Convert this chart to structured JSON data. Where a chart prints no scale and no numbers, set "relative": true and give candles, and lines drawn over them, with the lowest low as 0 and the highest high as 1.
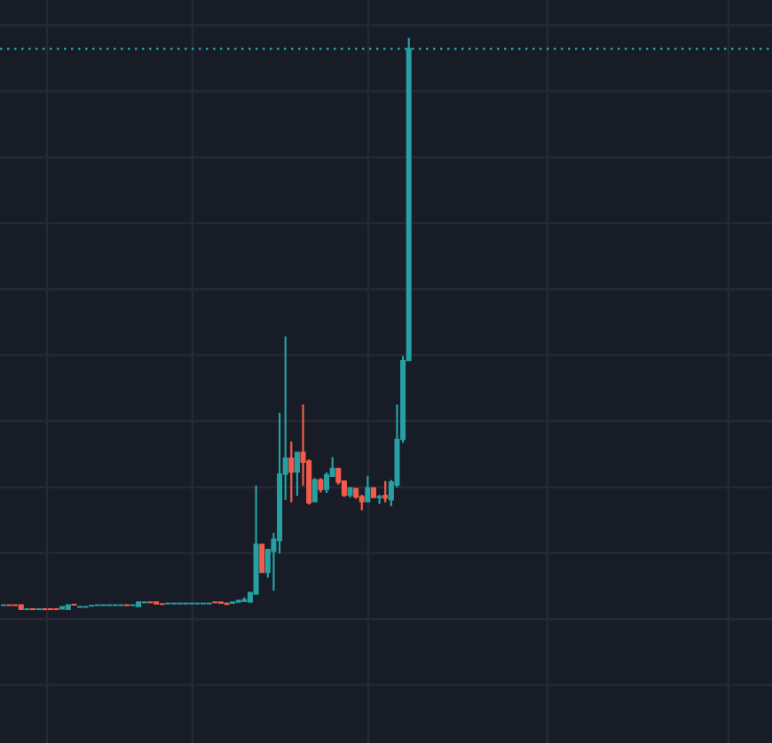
{
  "chart_data": {
    "type": "candlestick",
    "relative": true,
    "grid": true,
    "categories": [
      null,
      null,
      null,
      null,
      null,
      null,
      null,
      null,
      null,
      null,
      null,
      null,
      null,
      null,
      null,
      null,
      null,
      null,
      null,
      null,
      null,
      null,
      null,
      null,
      null,
      null,
      null,
      null,
      null,
      null,
      null,
      null,
      null,
      null,
      null,
      null,
      null,
      null,
      null,
      null,
      null,
      null,
      null,
      null,
      null,
      null,
      null,
      null,
      null,
      null,
      null,
      null,
      null,
      null,
      null,
      null,
      null,
      null,
      null,
      null,
      null,
      null,
      null,
      null,
      null,
      null,
      null,
      null,
      null,
      null
    ],
    "ohlc": [
      [
        0.007,
        0.008,
        0.007,
        0.008
      ],
      [
        0.008,
        0.008,
        0.007,
        0.007
      ],
      [
        0.008,
        0.008,
        0.007,
        0.007
      ],
      [
        0.008,
        0.008,
        0,
        0
      ],
      [
        0,
        0.001,
        0,
        0.001
      ],
      [
        0.001,
        0.001,
        0,
        0
      ],
      [
        0,
        0.001,
        0,
        0.001
      ],
      [
        0.001,
        0.001,
        0,
        0
      ],
      [
        0.001,
        0.001,
        0,
        0
      ],
      [
        0.001,
        0.001,
        0,
        0
      ],
      [
        0.001,
        0.005,
        0.001,
        0.005
      ],
      [
        0,
        0.008,
        0,
        0.008
      ],
      [
        0.009,
        0.009,
        0.008,
        0.008
      ],
      [
        0.004,
        0.005,
        0.004,
        0.005
      ],
      [
        0.004,
        0.005,
        0.004,
        0.005
      ],
      [
        0.006,
        0.007,
        0.006,
        0.007
      ],
      [
        0.007,
        0.008,
        0.007,
        0.008
      ],
      [
        0.007,
        0.008,
        0.007,
        0.008
      ],
      [
        0.007,
        0.008,
        0.007,
        0.008
      ],
      [
        0.007,
        0.008,
        0.007,
        0.008
      ],
      [
        0.007,
        0.008,
        0.007,
        0.008
      ],
      [
        0.008,
        0.008,
        0.007,
        0.007
      ],
      [
        0.007,
        0.008,
        0.007,
        0.008
      ],
      [
        0.005,
        0.013,
        0.005,
        0.013
      ],
      [
        0.012,
        0.013,
        0.012,
        0.013
      ],
      [
        0.013,
        0.013,
        0.012,
        0.012
      ],
      [
        0.013,
        0.013,
        0.01,
        0.01
      ],
      [
        0.01,
        0.01,
        0.009,
        0.009
      ],
      [
        0.01,
        0.011,
        0.01,
        0.011
      ],
      [
        0.01,
        0.011,
        0.01,
        0.011
      ],
      [
        0.01,
        0.011,
        0.01,
        0.011
      ],
      [
        0.01,
        0.011,
        0.01,
        0.011
      ],
      [
        0.01,
        0.011,
        0.01,
        0.011
      ],
      [
        0.01,
        0.011,
        0.01,
        0.011
      ],
      [
        0.01,
        0.011,
        0.01,
        0.011
      ],
      [
        0.01,
        0.011,
        0.01,
        0.011
      ],
      [
        0.013,
        0.013,
        0.012,
        0.012
      ],
      [
        0.013,
        0.013,
        0.011,
        0.011
      ],
      [
        0.011,
        0.011,
        0.009,
        0.009
      ],
      [
        0.011,
        0.013,
        0.011,
        0.013
      ],
      [
        0.013,
        0.016,
        0.013,
        0.016
      ],
      [
        0.014,
        0.02,
        0.014,
        0.017
      ],
      [
        0.013,
        0.03,
        0.013,
        0.03
      ],
      [
        0.027,
        0.216,
        0.027,
        0.114
      ],
      [
        0.114,
        0.114,
        0.065,
        0.065
      ],
      [
        0.065,
        0.105,
        0.057,
        0.105
      ],
      [
        0.102,
        0.133,
        0.034,
        0.123
      ],
      [
        0.121,
        0.343,
        0.099,
        0.237
      ],
      [
        0.237,
        0.477,
        0.193,
        0.265
      ],
      [
        0.265,
        0.293,
        0.189,
        0.241
      ],
      [
        0.241,
        0.275,
        0.2,
        0.275
      ],
      [
        0.275,
        0.358,
        0.218,
        0.258
      ],
      [
        0.26,
        0.262,
        0.185,
        0.187
      ],
      [
        0.189,
        0.229,
        0.189,
        0.227
      ],
      [
        0.227,
        0.229,
        0.206,
        0.21
      ],
      [
        0.21,
        0.239,
        0.205,
        0.236
      ],
      [
        0.233,
        0.266,
        0.233,
        0.247
      ],
      [
        0.247,
        0.247,
        0.22,
        0.223
      ],
      [
        0.225,
        0.225,
        0.198,
        0.2
      ],
      [
        0.2,
        0.213,
        0.197,
        0.213
      ],
      [
        0.212,
        0.212,
        0.195,
        0.197
      ],
      [
        0.198,
        0.2,
        0.175,
        0.189
      ],
      [
        0.189,
        0.233,
        0.189,
        0.213
      ],
      [
        0.213,
        0.213,
        0.196,
        0.196
      ],
      [
        0.196,
        0.2,
        0.186,
        0.198
      ],
      [
        0.2,
        0.224,
        0.189,
        0.195
      ],
      [
        0.192,
        0.226,
        0.182,
        0.223
      ],
      [
        0.218,
        0.358,
        0.215,
        0.298
      ],
      [
        0.298,
        0.443,
        0.293,
        0.436
      ],
      [
        0.436,
        1,
        0.436,
        0.982
      ]
    ],
    "colors": [
      "#26a0a3",
      "#f45b4b",
      "#f45b4b",
      "#f45b4b",
      "#26a0a3",
      "#f45b4b",
      "#26a0a3",
      "#f45b4b",
      "#f45b4b",
      "#f45b4b",
      "#26a0a3",
      "#26a0a3",
      "#f45b4b",
      "#26a0a3",
      "#26a0a3",
      "#26a0a3",
      "#26a0a3",
      "#26a0a3",
      "#26a0a3",
      "#26a0a3",
      "#26a0a3",
      "#f45b4b",
      "#26a0a3",
      "#26a0a3",
      "#26a0a3",
      "#f45b4b",
      "#f45b4b",
      "#f45b4b",
      "#26a0a3",
      "#26a0a3",
      "#26a0a3",
      "#26a0a3",
      "#26a0a3",
      "#26a0a3",
      "#26a0a3",
      "#26a0a3",
      "#f45b4b",
      "#f45b4b",
      "#f45b4b",
      "#26a0a3",
      "#26a0a3",
      "#26a0a3",
      "#26a0a3",
      "#26a0a3",
      "#f45b4b",
      "#26a0a3",
      "#26a0a3",
      "#26a0a3",
      "#26a0a3",
      "#f45b4b",
      "#26a0a3",
      "#f45b4b",
      "#f45b4b",
      "#26a0a3",
      "#f45b4b",
      "#26a0a3",
      "#26a0a3",
      "#f45b4b",
      "#f45b4b",
      "#26a0a3",
      "#f45b4b",
      "#f45b4b",
      "#26a0a3",
      "#f45b4b",
      "#26a0a3",
      "#f45b4b",
      "#26a0a3",
      "#26a0a3",
      "#26a0a3",
      "#26a0a3"
    ],
    "ref_lines": [
      {
        "axis": "y",
        "value": 0.982,
        "color": "#26a0a3",
        "line_style": "dotted"
      }
    ]
  }
}
